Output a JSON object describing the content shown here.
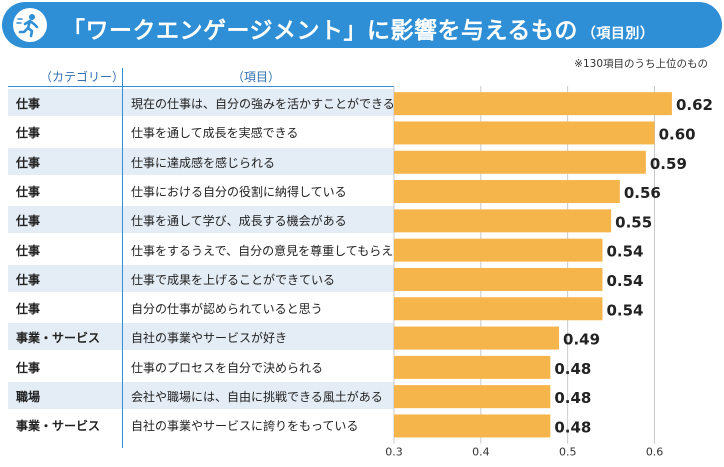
{
  "header": {
    "title": "「ワークエンゲージメント」に影響を与えるもの",
    "subtitle": "（項目別）",
    "icon": "running-person-icon",
    "color": "#2f8fd6"
  },
  "note": "※130項目のうち上位のもの",
  "columns": {
    "category": "（カテゴリー）",
    "item": "（項目）"
  },
  "chart_data": {
    "type": "bar",
    "orientation": "horizontal",
    "title": "「ワークエンゲージメント」に影響を与えるもの（項目別）",
    "xlim": [
      0.3,
      0.65
    ],
    "xticks": [
      "0.3",
      "0.4",
      "0.5",
      "0.6"
    ],
    "xtick_values": [
      0.3,
      0.4,
      0.5,
      0.6
    ],
    "bar_color": "#f6b54a",
    "rows": [
      {
        "category": "仕事",
        "item": "現在の仕事は、自分の強みを活かすことができる",
        "value": 0.62,
        "label": "0.62"
      },
      {
        "category": "仕事",
        "item": "仕事を通して成長を実感できる",
        "value": 0.6,
        "label": "0.60"
      },
      {
        "category": "仕事",
        "item": "仕事に達成感を感じられる",
        "value": 0.59,
        "label": "0.59"
      },
      {
        "category": "仕事",
        "item": "仕事における自分の役割に納得している",
        "value": 0.56,
        "label": "0.56"
      },
      {
        "category": "仕事",
        "item": "仕事を通して学び、成長する機会がある",
        "value": 0.55,
        "label": "0.55"
      },
      {
        "category": "仕事",
        "item": "仕事をするうえで、自分の意見を尊重してもらえる",
        "value": 0.54,
        "label": "0.54"
      },
      {
        "category": "仕事",
        "item": "仕事で成果を上げることができている",
        "value": 0.54,
        "label": "0.54"
      },
      {
        "category": "仕事",
        "item": "自分の仕事が認められていると思う",
        "value": 0.54,
        "label": "0.54"
      },
      {
        "category": "事業・サービス",
        "item": "自社の事業やサービスが好き",
        "value": 0.49,
        "label": "0.49"
      },
      {
        "category": "仕事",
        "item": "仕事のプロセスを自分で決められる",
        "value": 0.48,
        "label": "0.48"
      },
      {
        "category": "職場",
        "item": "会社や職場には、自由に挑戦できる風土がある",
        "value": 0.48,
        "label": "0.48"
      },
      {
        "category": "事業・サービス",
        "item": "自社の事業やサービスに誇りをもっている",
        "value": 0.48,
        "label": "0.48"
      }
    ]
  }
}
